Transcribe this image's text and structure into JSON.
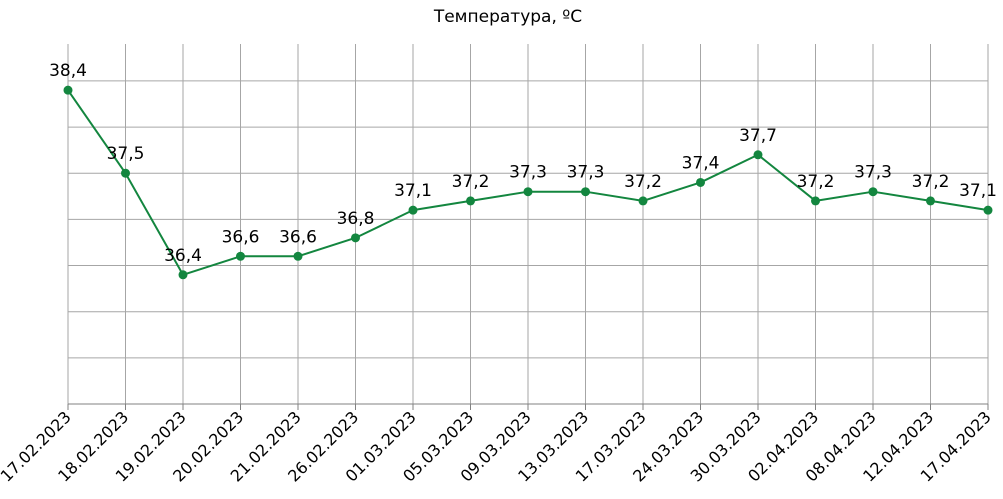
{
  "chart_data": {
    "type": "line",
    "title": "Температура, ºС",
    "xlabel": "",
    "ylabel": "",
    "categories": [
      "17.02.2023",
      "18.02.2023",
      "19.02.2023",
      "20.02.2023",
      "21.02.2023",
      "26.02.2023",
      "01.03.2023",
      "05.03.2023",
      "09.03.2023",
      "13.03.2023",
      "17.03.2023",
      "24.03.2023",
      "30.03.2023",
      "02.04.2023",
      "08.04.2023",
      "12.04.2023",
      "17.04.2023"
    ],
    "series": [
      {
        "values": [
          38.4,
          37.5,
          36.4,
          36.6,
          36.6,
          36.8,
          37.1,
          37.2,
          37.3,
          37.3,
          37.2,
          37.4,
          37.7,
          37.2,
          37.3,
          37.2,
          37.1
        ],
        "labels": [
          "38,4",
          "37,5",
          "36,4",
          "36,6",
          "36,6",
          "36,8",
          "37,1",
          "37,2",
          "37,3",
          "37,3",
          "37,2",
          "37,4",
          "37,7",
          "37,2",
          "37,3",
          "37,2",
          "37,1"
        ]
      }
    ],
    "ylim": [
      35.0,
      38.9
    ],
    "y_axis_labels_shown": false,
    "grid": true,
    "legend": "none",
    "colors": {
      "line": "#13863F",
      "grid": "#A6A6A6",
      "axis": "#808080"
    }
  }
}
